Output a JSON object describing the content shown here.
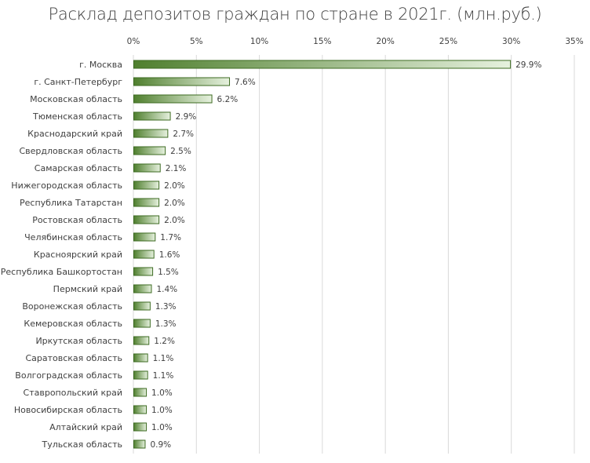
{
  "chart_data": {
    "type": "bar",
    "orientation": "horizontal",
    "title": "Расклад депозитов граждан по стране в 2021г. (млн.руб.)",
    "xlabel": "",
    "ylabel": "",
    "xlim": [
      0,
      35
    ],
    "x_ticks": [
      "0%",
      "5%",
      "10%",
      "15%",
      "20%",
      "25%",
      "30%",
      "35%"
    ],
    "x_tick_values": [
      0,
      5,
      10,
      15,
      20,
      25,
      30,
      35
    ],
    "x_axis_position": "top",
    "grid": true,
    "categories": [
      "г. Москва",
      "г. Санкт-Петербург",
      "Московская область",
      "Тюменская область",
      "Краснодарский край",
      "Свердловская область",
      "Самарская область",
      "Нижегородская область",
      "Республика Татарстан",
      "Ростовская область",
      "Челябинская область",
      "Красноярский край",
      "Республика Башкортостан",
      "Пермский край",
      "Воронежская область",
      "Кемеровская область",
      "Иркутская область",
      "Саратовская область",
      "Волгоградская область",
      "Ставропольский край",
      "Новосибирская область",
      "Алтайский край",
      "Тульская область"
    ],
    "values": [
      29.9,
      7.6,
      6.2,
      2.9,
      2.7,
      2.5,
      2.1,
      2.0,
      2.0,
      2.0,
      1.7,
      1.6,
      1.5,
      1.4,
      1.3,
      1.3,
      1.2,
      1.1,
      1.1,
      1.0,
      1.0,
      1.0,
      0.9
    ],
    "data_labels": [
      "29.9%",
      "7.6%",
      "6.2%",
      "2.9%",
      "2.7%",
      "2.5%",
      "2.1%",
      "2.0%",
      "2.0%",
      "2.0%",
      "1.7%",
      "1.6%",
      "1.5%",
      "1.4%",
      "1.3%",
      "1.3%",
      "1.2%",
      "1.1%",
      "1.1%",
      "1.0%",
      "1.0%",
      "1.0%",
      "0.9%"
    ],
    "colors": {
      "gradient_start": "#4f7f2e",
      "gradient_end": "#e6f1de",
      "border": "#3d6b22",
      "grid": "#d9d9d9",
      "text": "#404040"
    }
  }
}
